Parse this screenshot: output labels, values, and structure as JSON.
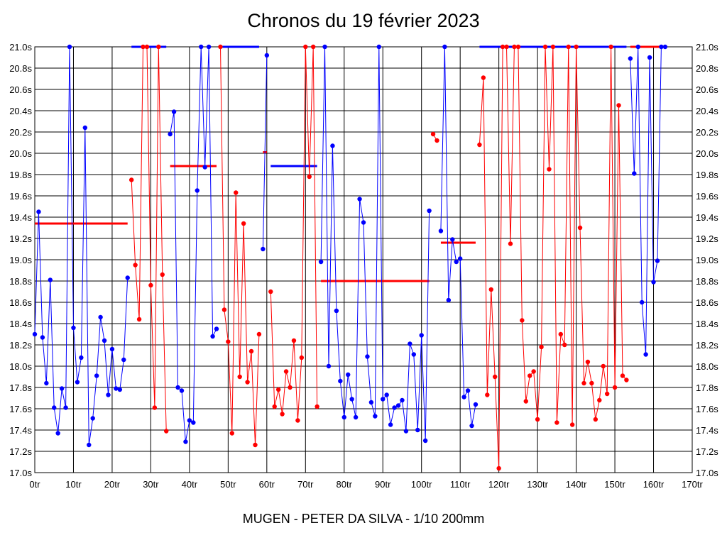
{
  "chart_data": {
    "type": "line",
    "title": "Chronos du 19 février 2023",
    "xlabel": "MUGEN - PETER DA SILVA - 1/10 200mm",
    "ylabel": "",
    "xlim": [
      0,
      170
    ],
    "ylim": [
      17.0,
      21.0
    ],
    "grid": true,
    "x_tick_labels": [
      "0tr",
      "10tr",
      "20tr",
      "30tr",
      "40tr",
      "50tr",
      "60tr",
      "70tr",
      "80tr",
      "90tr",
      "100tr",
      "110tr",
      "120tr",
      "130tr",
      "140tr",
      "150tr",
      "160tr",
      "170tr"
    ],
    "y_tick_labels": [
      "17.0s",
      "17.2s",
      "17.4s",
      "17.6s",
      "17.8s",
      "18.0s",
      "18.2s",
      "18.4s",
      "18.6s",
      "18.8s",
      "19.0s",
      "19.2s",
      "19.4s",
      "19.6s",
      "19.8s",
      "20.0s",
      "20.2s",
      "20.4s",
      "20.6s",
      "20.8s",
      "21.0s"
    ],
    "colors": {
      "blue": "#0000ff",
      "red": "#ff0000"
    },
    "series": [
      {
        "color": "blue",
        "x": [
          0,
          1,
          2,
          3,
          4,
          5,
          6,
          7,
          8,
          9,
          10,
          11,
          12,
          13,
          14,
          15,
          16,
          17,
          18,
          19,
          20,
          21,
          22,
          23,
          24
        ],
        "y": [
          18.3,
          19.45,
          18.27,
          17.84,
          18.81,
          17.61,
          17.37,
          17.79,
          17.61,
          21.0,
          18.36,
          17.85,
          18.08,
          20.24,
          17.26,
          17.51,
          17.91,
          18.46,
          18.24,
          17.73,
          18.16,
          17.79,
          17.78,
          18.06,
          18.83
        ]
      },
      {
        "color": "red",
        "x": [
          25,
          26,
          27,
          28,
          29,
          30,
          31,
          32,
          33,
          34
        ],
        "y": [
          19.75,
          18.95,
          18.44,
          21.0,
          21.0,
          18.76,
          17.61,
          21.0,
          18.86,
          17.39
        ]
      },
      {
        "color": "blue",
        "x": [
          35,
          36,
          37,
          38,
          39,
          40,
          41,
          42,
          43,
          44,
          45,
          46,
          47
        ],
        "y": [
          20.18,
          20.39,
          17.8,
          17.77,
          17.29,
          17.49,
          17.47,
          19.65,
          21.0,
          19.87,
          21.0,
          18.28,
          18.35
        ]
      },
      {
        "color": "red",
        "x": [
          48,
          49,
          50,
          51,
          52,
          53,
          54,
          55,
          56,
          57,
          58
        ],
        "y": [
          21.0,
          18.53,
          18.23,
          17.37,
          19.63,
          17.9,
          19.34,
          17.85,
          18.14,
          17.26,
          18.3
        ]
      },
      {
        "color": "blue",
        "x": [
          59,
          60
        ],
        "y": [
          19.1,
          20.92
        ]
      },
      {
        "color": "red",
        "x": [
          61,
          62,
          63,
          64,
          65,
          66,
          67,
          68,
          69,
          70,
          71,
          72,
          73
        ],
        "y": [
          18.7,
          17.62,
          17.78,
          17.55,
          17.95,
          17.8,
          18.24,
          17.49,
          18.08,
          21.0,
          19.78,
          21.0,
          17.62
        ]
      },
      {
        "color": "blue",
        "x": [
          74,
          75,
          76,
          77,
          78,
          79,
          80,
          81,
          82,
          83,
          84,
          85,
          86,
          87,
          88,
          89,
          90,
          91,
          92,
          93,
          94,
          95,
          96,
          97,
          98,
          99,
          100,
          101,
          102
        ],
        "y": [
          18.98,
          21.0,
          18.0,
          20.07,
          18.52,
          17.86,
          17.52,
          17.92,
          17.69,
          17.52,
          19.57,
          19.35,
          18.09,
          17.66,
          17.53,
          21.0,
          17.69,
          17.73,
          17.45,
          17.61,
          17.63,
          17.68,
          17.39,
          18.21,
          18.11,
          17.4,
          18.29,
          17.3,
          19.46
        ]
      },
      {
        "color": "red",
        "x": [
          103,
          104
        ],
        "y": [
          20.18,
          20.12
        ]
      },
      {
        "color": "blue",
        "x": [
          105,
          106,
          107,
          108,
          109,
          110,
          111,
          112,
          113,
          114
        ],
        "y": [
          19.27,
          21.0,
          18.62,
          19.19,
          18.98,
          19.01,
          17.71,
          17.77,
          17.44,
          17.64
        ]
      },
      {
        "color": "red",
        "x": [
          115,
          116,
          117,
          118,
          119,
          120,
          121,
          122,
          123,
          124,
          125,
          126,
          127,
          128,
          129,
          130,
          131,
          132,
          133,
          134,
          135,
          136,
          137,
          138,
          139,
          140,
          141,
          142,
          143,
          144,
          145,
          146,
          147,
          148,
          149,
          150,
          151,
          152,
          153
        ],
        "y": [
          20.08,
          20.71,
          17.73,
          18.72,
          17.9,
          17.04,
          21.0,
          21.0,
          19.15,
          21.0,
          21.0,
          18.43,
          17.67,
          17.91,
          17.95,
          17.5,
          18.18,
          21.0,
          19.85,
          21.0,
          17.47,
          18.3,
          18.2,
          21.0,
          17.45,
          21.0,
          19.3,
          17.84,
          18.04,
          17.84,
          17.5,
          17.68,
          18.0,
          17.74,
          21.0,
          17.8,
          20.45,
          17.91,
          17.87
        ]
      },
      {
        "color": "blue",
        "x": [
          154,
          155,
          156,
          157,
          158,
          159,
          160,
          161,
          162,
          163
        ],
        "y": [
          20.89,
          19.81,
          21.0,
          18.6,
          18.11,
          20.9,
          18.79,
          18.99,
          21.0,
          21.0
        ]
      }
    ],
    "reference_lines": [
      {
        "color": "red",
        "x": [
          0,
          24
        ],
        "y": 19.34
      },
      {
        "color": "blue",
        "x": [
          25,
          34
        ],
        "y": 21.0
      },
      {
        "color": "red",
        "x": [
          35,
          47
        ],
        "y": 19.88
      },
      {
        "color": "blue",
        "x": [
          48,
          58
        ],
        "y": 21.0
      },
      {
        "color": "red",
        "x": [
          59,
          60
        ],
        "y": 20.01
      },
      {
        "color": "blue",
        "x": [
          61,
          73
        ],
        "y": 19.88
      },
      {
        "color": "red",
        "x": [
          74,
          102
        ],
        "y": 18.8
      },
      {
        "color": "red",
        "x": [
          105,
          114
        ],
        "y": 19.16
      },
      {
        "color": "blue",
        "x": [
          115,
          153
        ],
        "y": 21.0
      },
      {
        "color": "red",
        "x": [
          154,
          163
        ],
        "y": 21.0
      }
    ]
  }
}
